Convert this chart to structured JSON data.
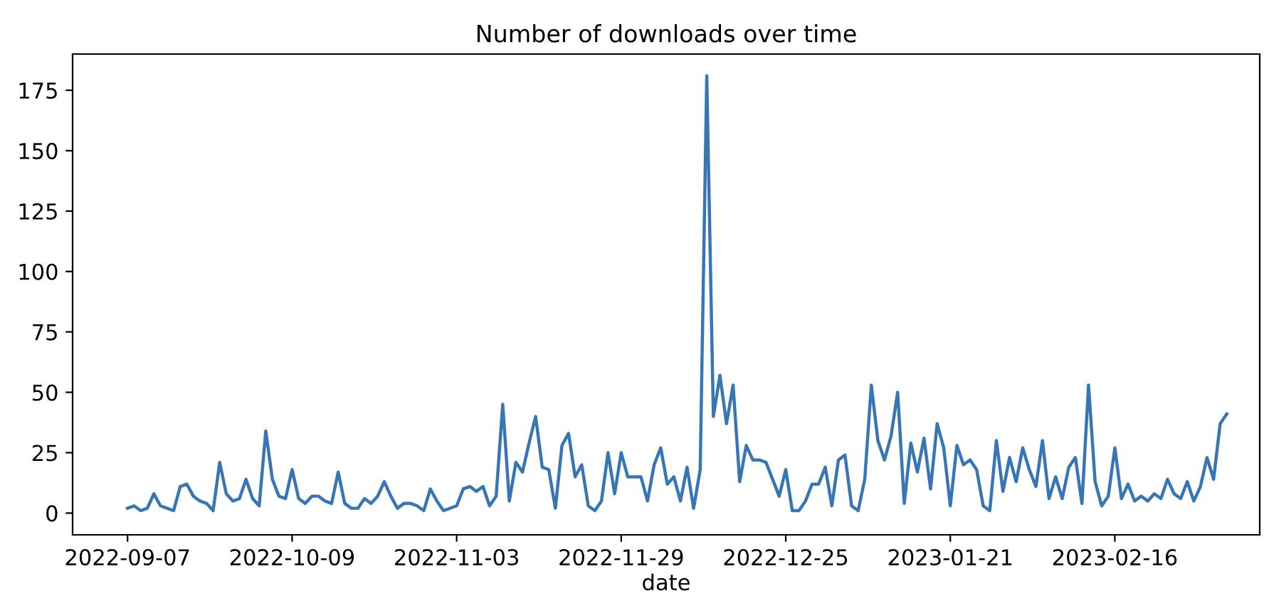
{
  "chart_data": {
    "type": "line",
    "title": "Number of downloads over time",
    "xlabel": "date",
    "categories": [
      "2022-09-07",
      null,
      null,
      null,
      null,
      null,
      null,
      null,
      null,
      null,
      null,
      null,
      null,
      null,
      null,
      null,
      null,
      null,
      null,
      null,
      null,
      null,
      null,
      null,
      null,
      "2022-10-09",
      null,
      null,
      null,
      null,
      null,
      null,
      null,
      null,
      null,
      null,
      null,
      null,
      null,
      null,
      null,
      null,
      null,
      null,
      null,
      null,
      null,
      null,
      null,
      null,
      "2022-11-03",
      null,
      null,
      null,
      null,
      null,
      null,
      null,
      null,
      null,
      null,
      null,
      null,
      null,
      null,
      null,
      null,
      null,
      null,
      null,
      null,
      null,
      null,
      null,
      null,
      "2022-11-29",
      null,
      null,
      null,
      null,
      null,
      null,
      null,
      null,
      null,
      null,
      null,
      null,
      null,
      null,
      null,
      null,
      null,
      null,
      null,
      null,
      null,
      null,
      null,
      null,
      "2022-12-25",
      null,
      null,
      null,
      null,
      null,
      null,
      null,
      null,
      null,
      null,
      null,
      null,
      null,
      null,
      null,
      null,
      null,
      null,
      null,
      null,
      null,
      null,
      null,
      null,
      "2023-01-21",
      null,
      null,
      null,
      null,
      null,
      null,
      null,
      null,
      null,
      null,
      null,
      null,
      null,
      null,
      null,
      null,
      null,
      null,
      null,
      null,
      null,
      null,
      null,
      null,
      "2023-02-16",
      null,
      null,
      null,
      null,
      null,
      null,
      null,
      null,
      null,
      null,
      null,
      null,
      null,
      null,
      null,
      null,
      null
    ],
    "series": [
      {
        "color": "#3776b4",
        "values": [
          2,
          3,
          1,
          2,
          8,
          3,
          2,
          1,
          11,
          12,
          7,
          5,
          4,
          1,
          21,
          8,
          5,
          6,
          14,
          6,
          3,
          34,
          14,
          7,
          6,
          18,
          6,
          4,
          7,
          7,
          5,
          4,
          17,
          4,
          2,
          2,
          6,
          4,
          7,
          13,
          7,
          2,
          4,
          4,
          3,
          1,
          10,
          5,
          1,
          2,
          3,
          10,
          11,
          9,
          11,
          3,
          7,
          45,
          5,
          21,
          17,
          29,
          40,
          19,
          18,
          2,
          28,
          33,
          15,
          20,
          3,
          1,
          5,
          25,
          8,
          25,
          15,
          15,
          15,
          5,
          20,
          27,
          12,
          15,
          5,
          19,
          2,
          18,
          181,
          40,
          57,
          37,
          53,
          13,
          28,
          22,
          22,
          21,
          14,
          7,
          18,
          1,
          1,
          5,
          12,
          12,
          19,
          3,
          22,
          24,
          3,
          1,
          14,
          53,
          30,
          22,
          32,
          50,
          4,
          29,
          17,
          31,
          10,
          37,
          27,
          3,
          28,
          20,
          22,
          18,
          3,
          1,
          30,
          9,
          23,
          13,
          27,
          18,
          11,
          30,
          6,
          15,
          6,
          19,
          23,
          4,
          53,
          13,
          3,
          7,
          27,
          6,
          12,
          5,
          7,
          5,
          8,
          6,
          14,
          8,
          6,
          13,
          5,
          11,
          23,
          14,
          37,
          41
        ]
      }
    ],
    "ylim": [
      -9,
      190
    ],
    "yticks": [
      0,
      25,
      50,
      75,
      100,
      125,
      150,
      175
    ],
    "grid": false,
    "legend": false,
    "marker": "none",
    "line_style": "solid"
  }
}
